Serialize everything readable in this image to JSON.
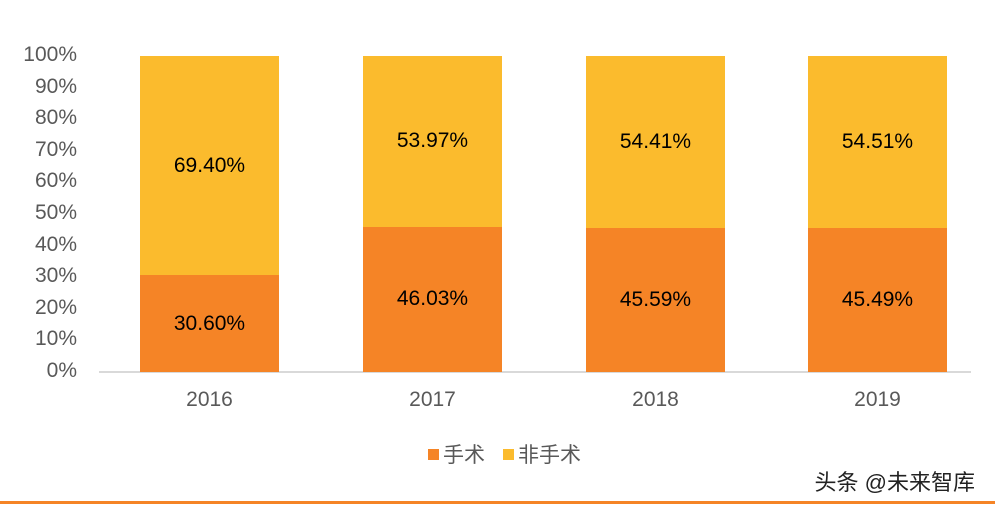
{
  "chart_data": {
    "type": "bar",
    "stacked": true,
    "title": "",
    "xlabel": "",
    "ylabel": "",
    "ylim": [
      0,
      100
    ],
    "categories": [
      "2016",
      "2017",
      "2018",
      "2019"
    ],
    "series": [
      {
        "name": "手术",
        "color": "#F58426",
        "values": [
          30.6,
          46.03,
          45.59,
          45.49
        ],
        "labels": [
          "30.60%",
          "46.03%",
          "45.59%",
          "45.49%"
        ]
      },
      {
        "name": "非手术",
        "color": "#FBBB2D",
        "values": [
          69.4,
          53.97,
          54.41,
          54.51
        ],
        "labels": [
          "69.40%",
          "53.97%",
          "54.41%",
          "54.51%"
        ]
      }
    ],
    "y_ticks": [
      "0%",
      "10%",
      "20%",
      "30%",
      "40%",
      "50%",
      "60%",
      "70%",
      "80%",
      "90%",
      "100%"
    ],
    "grid": false,
    "legend_position": "bottom"
  },
  "legend": {
    "items": [
      {
        "label": "手术",
        "color": "#F58426"
      },
      {
        "label": "非手术",
        "color": "#FBBB2D"
      }
    ]
  },
  "watermark": "头条 @未来智库",
  "colors": {
    "accent_rule": "#F58426",
    "axis": "#d9d9d9",
    "tick_text": "#595959"
  }
}
